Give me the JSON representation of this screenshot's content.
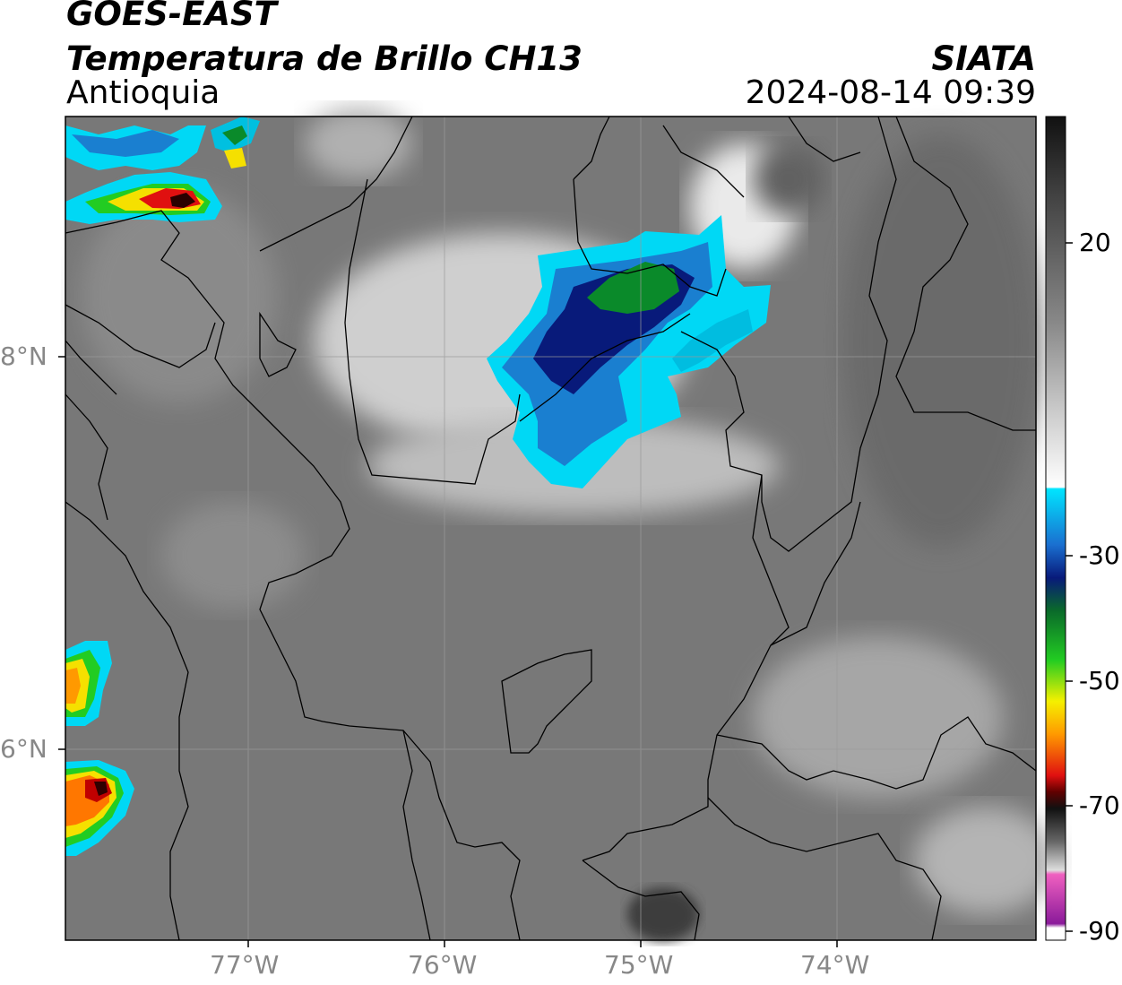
{
  "header": {
    "satellite": "GOES-EAST",
    "product": "Temperatura de Brillo CH13",
    "region": "Antioquia",
    "organization": "SIATA",
    "datetime": "2024-08-14 09:39"
  },
  "map": {
    "lon_range": [
      -77.95,
      -73.0
    ],
    "lat_range": [
      4.95,
      9.2
    ],
    "longitude_labels": [
      {
        "lon": -77,
        "label": "77°W"
      },
      {
        "lon": -76,
        "label": "76°W"
      },
      {
        "lon": -75,
        "label": "75°W"
      },
      {
        "lon": -74,
        "label": "74°W"
      }
    ],
    "latitude_labels": [
      {
        "lat": 8,
        "label": "8°N"
      },
      {
        "lat": 6,
        "label": "6°N"
      }
    ],
    "gridlines": true
  },
  "colorbar": {
    "range": [
      -90,
      30
    ],
    "tick_labels": [
      {
        "value": 20,
        "label": "20"
      },
      {
        "value": -30,
        "label": "-30"
      },
      {
        "value": -50,
        "label": "-50"
      },
      {
        "value": -70,
        "label": "-70"
      },
      {
        "value": -90,
        "label": "-90"
      }
    ]
  },
  "colors": {
    "cold_cyan": "#00d8f5",
    "cold_blue": "#0a2a8c",
    "cold_green": "#0a8a2a",
    "very_cold_yellow": "#f5e000",
    "very_cold_red": "#e01010"
  }
}
